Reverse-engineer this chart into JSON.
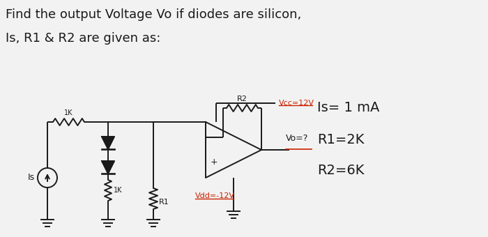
{
  "title_line1": "Find the output Voltage Vo if diodes are silicon,",
  "title_line2": "Is, R1 & R2 are given as:",
  "bg_color": "#f2f2f2",
  "cc": "#1a1a1a",
  "rc": "#cc2200",
  "param_is": "Is= 1 mA",
  "param_r1": "R1=2K",
  "param_r2": "R2=6K",
  "label_is": "Is",
  "label_1k": "1K",
  "label_1k2": "1K",
  "label_r1": "R1",
  "label_r2": "R2",
  "label_vcc": "Vcc=12V",
  "label_vdd": "Vdd=-12V",
  "label_vo": "Vo=?"
}
